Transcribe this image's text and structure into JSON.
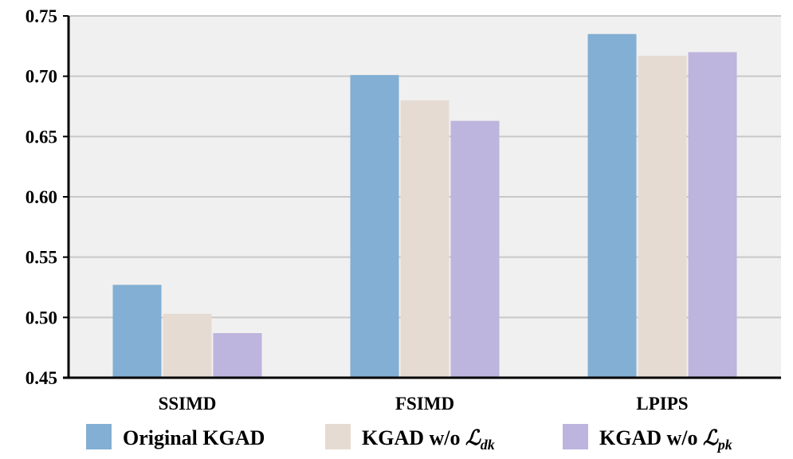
{
  "chart_data": {
    "type": "bar",
    "title": "",
    "xlabel": "",
    "ylabel": "",
    "categories": [
      "SSIMD",
      "FSIMD",
      "LPIPS"
    ],
    "ylim": [
      0.45,
      0.75
    ],
    "yticks": [
      "0.45",
      "0.50",
      "0.55",
      "0.60",
      "0.65",
      "0.70",
      "0.75"
    ],
    "grid": true,
    "legend_position": "bottom",
    "series": [
      {
        "name": "Original KGAD",
        "legend": {
          "main": "Original KGAD",
          "script": "",
          "sub": ""
        },
        "color": "#82afd3",
        "values": [
          0.527,
          0.701,
          0.735
        ]
      },
      {
        "name": "KGAD w/o ℒdk",
        "legend": {
          "main": "KGAD w/o ",
          "script": "ℒ",
          "sub": "dk"
        },
        "color": "#e6dbd3",
        "values": [
          0.503,
          0.68,
          0.717
        ]
      },
      {
        "name": "KGAD w/o ℒpk",
        "legend": {
          "main": "KGAD w/o ",
          "script": "ℒ",
          "sub": "pk"
        },
        "color": "#bdb5dd",
        "values": [
          0.487,
          0.663,
          0.72
        ]
      }
    ]
  },
  "colors": {
    "plot_background": "#f0f0f0",
    "grid": "#c8c8c8",
    "axis": "#000000"
  }
}
